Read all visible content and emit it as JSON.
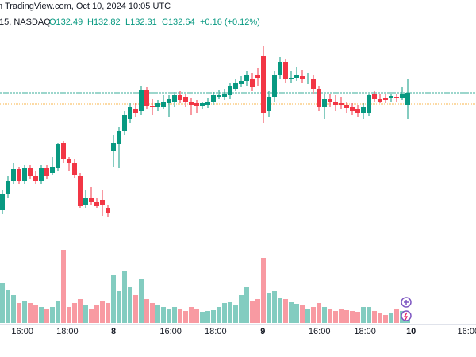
{
  "chart_data": {
    "type": "candlestick",
    "title": "n TradingView.com, Oct 10, 2024 10:05 UTC",
    "symbol": "15, NASDAQ",
    "ohlc_labels": [
      "O132.49",
      "H132.82",
      "L132.31",
      "C132.64",
      "+0.16 (+0.12%)"
    ],
    "open": [
      131.16,
      131.36,
      131.53,
      131.68,
      131.53,
      131.69,
      131.59,
      131.53,
      131.69,
      131.63,
      131.69,
      132.01,
      131.81,
      131.76,
      131.59,
      131.23,
      131.31,
      131.26,
      131.29,
      131.19,
      131.91,
      131.99,
      132.16,
      132.31,
      132.43,
      132.41,
      132.68,
      132.48,
      132.46,
      132.46,
      132.51,
      132.53,
      132.61,
      132.59,
      132.53,
      132.51,
      132.48,
      132.49,
      132.53,
      132.59,
      132.59,
      132.61,
      132.69,
      132.75,
      132.79,
      132.81,
      132.86,
      133.11,
      132.41,
      132.59,
      132.86,
      133.03,
      132.81,
      132.83,
      132.85,
      132.81,
      132.81,
      132.69,
      132.46,
      132.56,
      132.53,
      132.51,
      132.49,
      132.46,
      132.43,
      132.39,
      132.39,
      132.63,
      132.56,
      132.57,
      132.57,
      132.59,
      132.57,
      132.49
    ],
    "high": [
      131.41,
      131.59,
      131.76,
      131.71,
      131.73,
      131.73,
      131.66,
      131.73,
      131.73,
      131.83,
      132.01,
      132.03,
      131.83,
      131.81,
      131.63,
      131.41,
      131.45,
      131.31,
      131.41,
      131.23,
      132.11,
      132.21,
      132.41,
      132.51,
      132.51,
      132.73,
      132.71,
      132.56,
      132.55,
      132.61,
      132.61,
      132.65,
      132.66,
      132.63,
      132.57,
      132.55,
      132.53,
      132.57,
      132.65,
      132.67,
      132.69,
      132.76,
      132.81,
      132.85,
      132.91,
      132.89,
      132.95,
      133.23,
      132.66,
      132.91,
      133.09,
      133.07,
      132.91,
      132.96,
      132.93,
      132.89,
      132.86,
      132.73,
      132.63,
      132.63,
      132.61,
      132.59,
      132.53,
      132.51,
      132.49,
      132.51,
      132.63,
      132.66,
      132.63,
      132.63,
      132.63,
      132.63,
      132.71,
      132.82
    ],
    "low": [
      131.11,
      131.31,
      131.49,
      131.49,
      131.49,
      131.55,
      131.49,
      131.49,
      131.55,
      131.61,
      131.65,
      131.76,
      131.66,
      131.56,
      131.19,
      131.19,
      131.23,
      131.19,
      131.09,
      131.07,
      131.71,
      131.69,
      132.11,
      132.26,
      132.33,
      132.36,
      132.43,
      132.36,
      132.41,
      132.43,
      132.33,
      132.46,
      132.51,
      132.46,
      132.36,
      132.39,
      132.43,
      132.45,
      132.49,
      132.56,
      132.55,
      132.56,
      132.66,
      132.71,
      132.73,
      132.66,
      132.73,
      132.26,
      132.33,
      132.53,
      132.81,
      132.77,
      132.77,
      132.79,
      132.77,
      132.75,
      132.63,
      132.41,
      132.31,
      132.46,
      132.41,
      132.43,
      132.39,
      132.36,
      132.33,
      132.31,
      132.35,
      132.53,
      132.51,
      132.51,
      132.53,
      132.53,
      132.55,
      132.31
    ],
    "close": [
      131.36,
      131.53,
      131.68,
      131.53,
      131.69,
      131.59,
      131.53,
      131.69,
      131.59,
      131.71,
      131.99,
      131.81,
      131.76,
      131.61,
      131.21,
      131.31,
      131.26,
      131.21,
      131.23,
      131.13,
      132.01,
      132.16,
      132.36,
      132.46,
      132.39,
      132.68,
      132.48,
      132.46,
      132.51,
      132.53,
      132.56,
      132.61,
      132.55,
      132.53,
      132.49,
      132.47,
      132.51,
      132.53,
      132.61,
      132.61,
      132.63,
      132.73,
      132.76,
      132.79,
      132.86,
      132.71,
      132.83,
      132.39,
      132.59,
      132.86,
      133.03,
      132.81,
      132.83,
      132.86,
      132.81,
      132.82,
      132.69,
      132.46,
      132.56,
      132.53,
      132.49,
      132.49,
      132.45,
      132.41,
      132.39,
      132.46,
      132.61,
      132.56,
      132.53,
      132.55,
      132.6,
      132.57,
      132.63,
      132.64
    ],
    "volume": [
      50,
      42,
      35,
      25,
      28,
      25,
      22,
      20,
      18,
      20,
      28,
      92,
      20,
      25,
      30,
      22,
      18,
      22,
      28,
      25,
      60,
      40,
      65,
      45,
      35,
      55,
      30,
      25,
      22,
      20,
      18,
      20,
      18,
      15,
      20,
      18,
      14,
      15,
      16,
      20,
      25,
      26,
      22,
      35,
      45,
      28,
      30,
      82,
      38,
      40,
      32,
      30,
      26,
      24,
      22,
      18,
      20,
      25,
      20,
      18,
      15,
      18,
      16,
      15,
      14,
      20,
      20,
      15,
      12,
      10,
      12,
      18,
      15,
      12
    ],
    "up_color": "#089981",
    "down_color": "#f23645",
    "ylim": [
      130.71,
      133.81
    ],
    "vlim": [
      0,
      100
    ],
    "xticks": [
      {
        "value": 3.6,
        "label": "16:00"
      },
      {
        "value": 11.7,
        "label": "18:00"
      },
      {
        "value": 20,
        "label": "8"
      },
      {
        "value": 30.3,
        "label": "16:00"
      },
      {
        "value": 38.4,
        "label": "18:00"
      },
      {
        "value": 46.9,
        "label": "9"
      },
      {
        "value": 57.1,
        "label": "16:00"
      },
      {
        "value": 65.3,
        "label": "18:00"
      },
      {
        "value": 73.6,
        "label": "10"
      },
      {
        "value": 83.9,
        "label": "16:00"
      }
    ],
    "price_lines": [
      {
        "value": 132.64,
        "color": "#089981"
      },
      {
        "value": 132.5,
        "color": "#f7a21b"
      }
    ]
  }
}
